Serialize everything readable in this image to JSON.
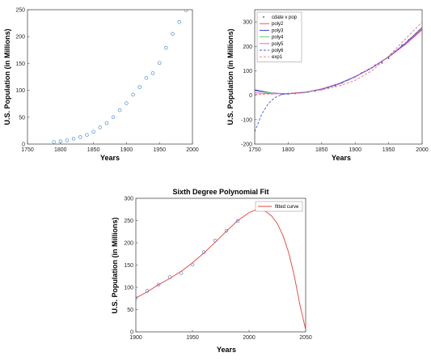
{
  "chart_data": [
    {
      "type": "scatter",
      "title": "",
      "xlabel": "Years",
      "ylabel": "U.S. Population (in Millions)",
      "xlim": [
        1750,
        2000
      ],
      "ylim": [
        0,
        250
      ],
      "xticks": [
        1750,
        1800,
        1850,
        1900,
        1950,
        2000
      ],
      "yticks": [
        0,
        50,
        100,
        150,
        200,
        250
      ],
      "colors": {
        "marker": "#4a90d9"
      },
      "series": [
        {
          "x": [
            1790,
            1800,
            1810,
            1820,
            1830,
            1840,
            1850,
            1860,
            1870,
            1880,
            1890,
            1900,
            1910,
            1920,
            1930,
            1940,
            1950,
            1960,
            1970,
            1980,
            1990
          ],
          "y": [
            4,
            5,
            7,
            10,
            13,
            17,
            23,
            31,
            39,
            50,
            63,
            76,
            92,
            106,
            123,
            132,
            151,
            179,
            205,
            227,
            249
          ]
        }
      ]
    },
    {
      "type": "line",
      "title": "",
      "xlabel": "Years",
      "ylabel": "U.S. Population (in Millions)",
      "xlim": [
        1750,
        2000
      ],
      "ylim": [
        -200,
        350
      ],
      "xticks": [
        1750,
        1800,
        1850,
        1900,
        1950,
        2000
      ],
      "yticks": [
        -200,
        -100,
        0,
        100,
        200,
        300
      ],
      "legend_position": "top-left",
      "series": [
        {
          "name": "cdate v pop",
          "style": "points",
          "color": "#1f3fbf",
          "x": [
            1790,
            1800,
            1810,
            1820,
            1830,
            1840,
            1850,
            1860,
            1870,
            1880,
            1890,
            1900,
            1910,
            1920,
            1930,
            1940,
            1950,
            1960,
            1970,
            1980,
            1990
          ],
          "y": [
            4,
            5,
            7,
            10,
            13,
            17,
            23,
            31,
            39,
            50,
            63,
            76,
            92,
            106,
            123,
            132,
            151,
            179,
            205,
            227,
            249
          ]
        },
        {
          "name": "poly2",
          "style": "solid",
          "color": "#e8413c",
          "x": [
            1750,
            1775,
            1800,
            1825,
            1850,
            1875,
            1900,
            1925,
            1950,
            1975,
            2000
          ],
          "y": [
            20,
            8,
            6,
            12,
            26,
            47,
            76,
            112,
            156,
            208,
            268
          ]
        },
        {
          "name": "poly3",
          "style": "solid",
          "color": "#2c2cd6",
          "x": [
            1750,
            1775,
            1800,
            1825,
            1850,
            1875,
            1900,
            1925,
            1950,
            1975,
            2000
          ],
          "y": [
            22,
            9,
            6,
            11,
            24,
            45,
            75,
            112,
            158,
            213,
            277
          ]
        },
        {
          "name": "poly4",
          "style": "solid",
          "color": "#4bd64b",
          "x": [
            1750,
            1775,
            1800,
            1825,
            1850,
            1875,
            1900,
            1925,
            1950,
            1975,
            2000
          ],
          "y": [
            18,
            8,
            6,
            11,
            24,
            46,
            76,
            112,
            157,
            211,
            274
          ]
        },
        {
          "name": "poly5",
          "style": "solid",
          "color": "#e94de9",
          "x": [
            1750,
            1775,
            1800,
            1825,
            1850,
            1875,
            1900,
            1925,
            1950,
            1975,
            2000
          ],
          "y": [
            10,
            6,
            6,
            12,
            25,
            46,
            76,
            113,
            158,
            211,
            272
          ]
        },
        {
          "name": "poly6",
          "style": "dashed",
          "color": "#3a5fd9",
          "x": [
            1750,
            1760,
            1770,
            1780,
            1790,
            1800,
            1825,
            1850,
            1875,
            1900,
            1925,
            1950,
            1975,
            2000
          ],
          "y": [
            -150,
            -80,
            -35,
            -10,
            2,
            6,
            12,
            25,
            46,
            76,
            113,
            157,
            212,
            278
          ]
        },
        {
          "name": "exp1",
          "style": "dashed",
          "color": "#f07070",
          "x": [
            1750,
            1775,
            1800,
            1825,
            1850,
            1875,
            1900,
            1925,
            1950,
            1975,
            2000
          ],
          "y": [
            3,
            5,
            8,
            13,
            22,
            37,
            61,
            100,
            160,
            230,
            300
          ]
        }
      ]
    },
    {
      "type": "line",
      "title": "Sixth Degree Polynomial Fit",
      "xlabel": "Years",
      "ylabel": "U.S. Population (in Millions)",
      "xlim": [
        1900,
        2050
      ],
      "ylim": [
        0,
        300
      ],
      "xticks": [
        1900,
        1950,
        2000,
        2050
      ],
      "yticks": [
        0,
        50,
        100,
        150,
        200,
        250,
        300
      ],
      "legend_position": "top-right",
      "series": [
        {
          "name": "",
          "style": "markers",
          "color": "#4a90d9",
          "x": [
            1900,
            1910,
            1920,
            1930,
            1940,
            1950,
            1960,
            1970,
            1980,
            1990
          ],
          "y": [
            76,
            92,
            106,
            123,
            132,
            151,
            179,
            205,
            227,
            249
          ]
        },
        {
          "name": "fitted curve",
          "style": "solid",
          "color": "#e8413c",
          "x": [
            1900,
            1910,
            1920,
            1930,
            1940,
            1950,
            1960,
            1970,
            1980,
            1990,
            2000,
            2005,
            2010,
            2015,
            2020,
            2025,
            2030,
            2035,
            2040,
            2045,
            2050
          ],
          "y": [
            76,
            90,
            106,
            120,
            136,
            155,
            177,
            201,
            226,
            250,
            268,
            273,
            274,
            270,
            260,
            243,
            216,
            178,
            125,
            60,
            5
          ]
        }
      ]
    }
  ]
}
